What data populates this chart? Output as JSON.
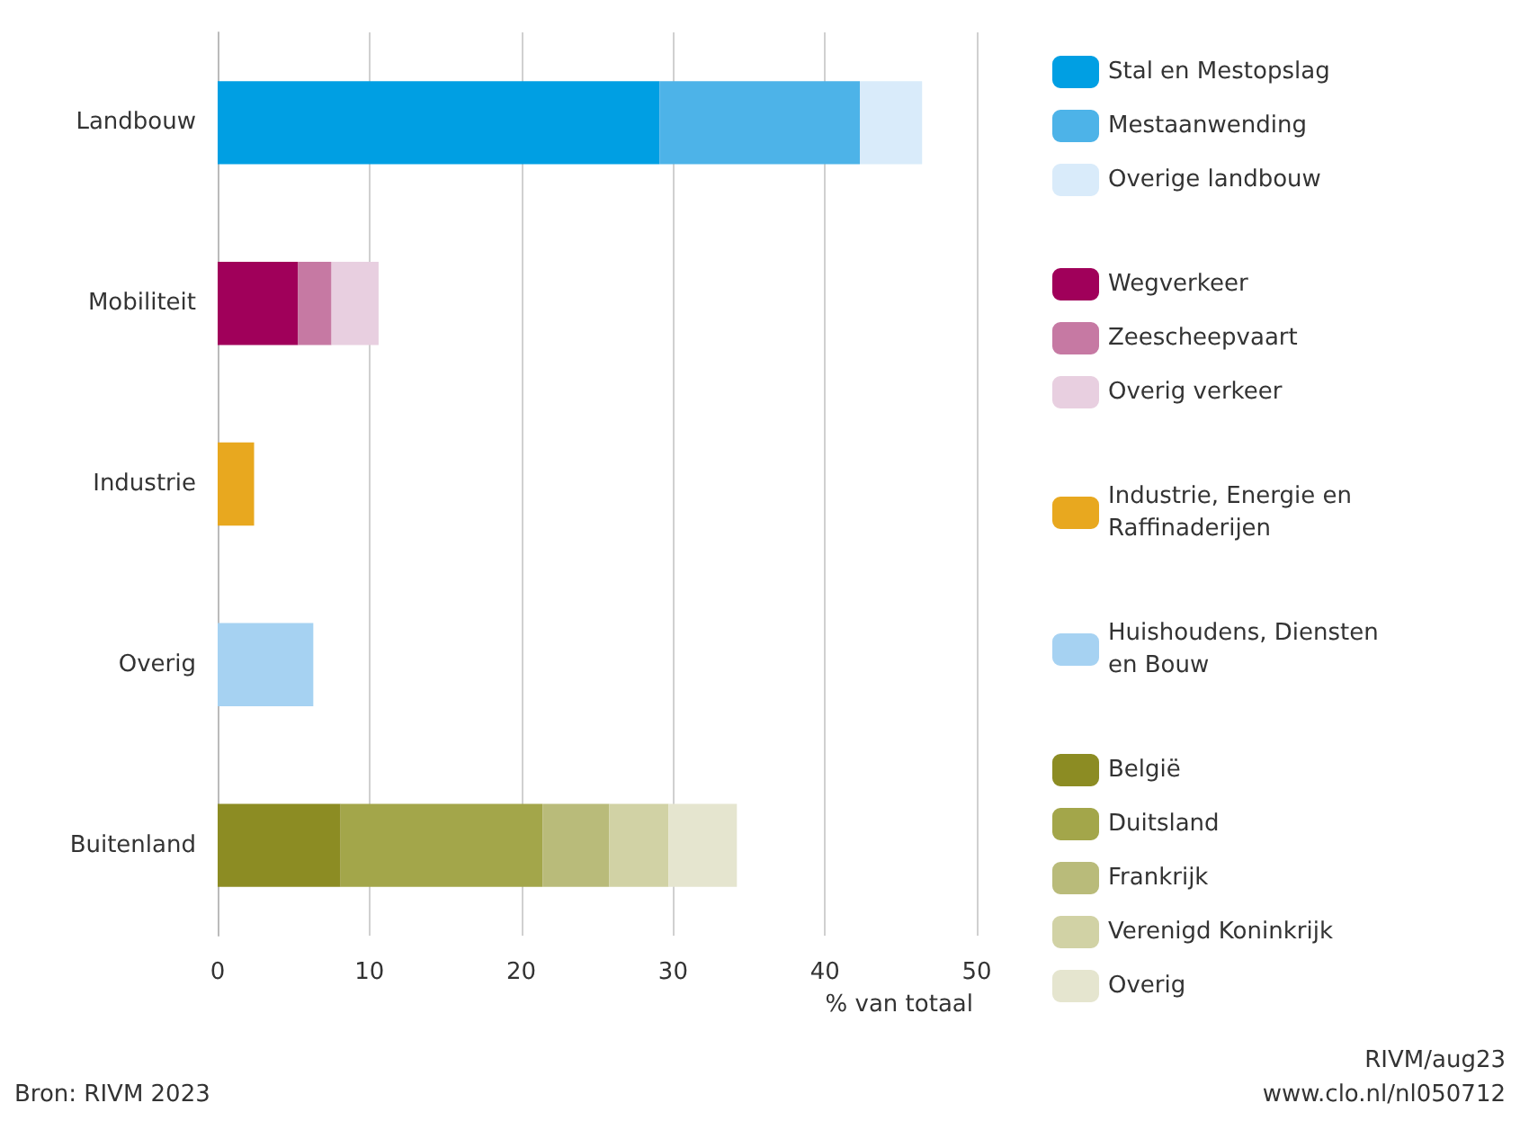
{
  "chart_data": {
    "type": "bar",
    "orientation": "horizontal",
    "stacked": true,
    "categories": [
      "Landbouw",
      "Mobiliteit",
      "Industrie",
      "Overig",
      "Buitenland"
    ],
    "xlabel": "% van totaal",
    "xlim": [
      0,
      50
    ],
    "xticks": [
      0,
      10,
      20,
      30,
      40,
      50
    ],
    "grid": "x",
    "legend": "right",
    "annotations": [
      "Bron: RIVM 2023",
      "RIVM/aug23",
      "www.clo.nl/nl050712"
    ],
    "series": [
      {
        "name": "Stal en Mestopslag",
        "color": "#009fe3",
        "values": [
          29.1,
          null,
          null,
          null,
          null
        ]
      },
      {
        "name": "Mestaanwending",
        "color": "#4db3e8",
        "values": [
          13.2,
          null,
          null,
          null,
          null
        ]
      },
      {
        "name": "Overige landbouw",
        "color": "#d9ebfa",
        "values": [
          4.1,
          null,
          null,
          null,
          null
        ]
      },
      {
        "name": "Wegverkeer",
        "color": "#a0005a",
        "values": [
          null,
          5.3,
          null,
          null,
          null
        ]
      },
      {
        "name": "Zeescheepvaart",
        "color": "#c679a3",
        "values": [
          null,
          2.2,
          null,
          null,
          null
        ]
      },
      {
        "name": "Overig verkeer",
        "color": "#e8cfe0",
        "values": [
          null,
          3.1,
          null,
          null,
          null
        ]
      },
      {
        "name": "Industrie, Energie en Raffinaderijen",
        "color": "#e8a81f",
        "values": [
          null,
          null,
          2.4,
          null,
          null
        ]
      },
      {
        "name": "Huishoudens, Diensten en Bouw",
        "color": "#a6d2f2",
        "values": [
          null,
          null,
          null,
          6.3,
          null
        ]
      },
      {
        "name": "België",
        "color": "#8c8c23",
        "values": [
          null,
          null,
          null,
          null,
          8.1
        ]
      },
      {
        "name": "Duitsland",
        "color": "#a3a64a",
        "values": [
          null,
          null,
          null,
          null,
          13.3
        ]
      },
      {
        "name": "Frankrijk",
        "color": "#b9bb7a",
        "values": [
          null,
          null,
          null,
          null,
          4.4
        ]
      },
      {
        "name": "Verenigd Koninkrijk",
        "color": "#d1d2a5",
        "values": [
          null,
          null,
          null,
          null,
          3.9
        ]
      },
      {
        "name": "Overig",
        "color": "#e5e5cf",
        "values": [
          null,
          null,
          null,
          null,
          4.5
        ]
      }
    ]
  }
}
